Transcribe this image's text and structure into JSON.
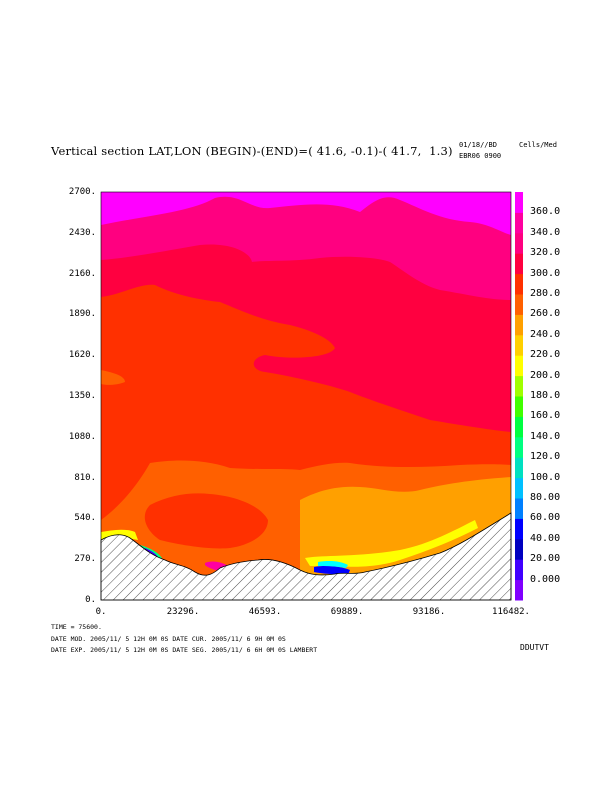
{
  "header": {
    "title": "Vertical section LAT,LON (BEGIN)-(END)=( 41.6, -0.1)-( 41.7,  1.3)",
    "stamp_line1": "01/18//BD",
    "stamp_line2": "EBR06 0900",
    "units": "Cells/Med"
  },
  "chart_data": {
    "type": "heatmap",
    "title": "Vertical section LAT,LON (BEGIN)-(END)=( 41.6, -0.1)-( 41.7,  1.3)",
    "xlabel": "",
    "ylabel": "",
    "x_tick_labels": [
      "0.",
      "23296.",
      "46593.",
      "69889.",
      "93186.",
      "116482."
    ],
    "y_tick_labels": [
      "0.",
      "270.",
      "540.",
      "810.",
      "1080.",
      "1350.",
      "1620.",
      "1890.",
      "2160.",
      "2430.",
      "2700."
    ],
    "xlim": [
      0,
      116482
    ],
    "ylim": [
      0,
      2700
    ],
    "colorbar": {
      "tick_labels": [
        "0.000",
        "20.00",
        "40.00",
        "60.00",
        "80.00",
        "100.0",
        "120.0",
        "140.0",
        "160.0",
        "180.0",
        "200.0",
        "220.0",
        "240.0",
        "260.0",
        "280.0",
        "300.0",
        "320.0",
        "340.0",
        "360.0"
      ],
      "colors": [
        "#8000ff",
        "#4000ff",
        "#0000c0",
        "#0000ff",
        "#0080ff",
        "#00c0ff",
        "#00e0c0",
        "#00ff80",
        "#00ff40",
        "#40ff00",
        "#a0ff00",
        "#ffff00",
        "#ffd000",
        "#ffa000",
        "#ff6000",
        "#ff3000",
        "#ff0040",
        "#ff0080",
        "#ff00a0",
        "#ff00ff"
      ]
    },
    "fill_colors": {
      "top": "#ff00ff",
      "upper": "#ff0080",
      "middle": "#ff0040",
      "lower_mid": "#ff3000",
      "orange": "#ff6000",
      "light_orange": "#ffa000",
      "yellow": "#ffff00",
      "terrain": "#ffffff"
    }
  },
  "footer": {
    "time": "TIME =     75600.",
    "line1": "DATE MOD. 2005/11/ 5  12H 0M 0S   DATE CUR. 2005/11/ 6   9H 0M 0S",
    "line2": "DATE EXP. 2005/11/ 5  12H 0M 0S   DATE SEG. 2005/11/ 6   6H 0M 0S   LAMBERT",
    "corner": "DDUTVT"
  }
}
